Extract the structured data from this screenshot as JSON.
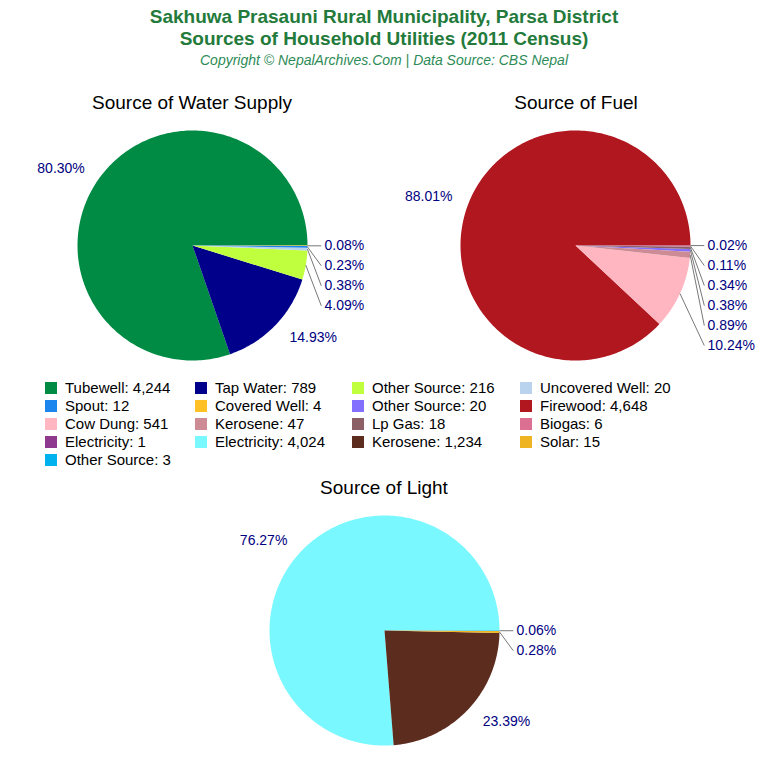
{
  "title": "Sakhuwa Prasauni Rural Municipality, Parsa District\nSources of Household Utilities (2011 Census)",
  "subtitle": "Copyright © NepalArchives.Com | Data Source: CBS Nepal",
  "chart_data": [
    {
      "type": "pie",
      "title": "Source of Water Supply",
      "categories": [
        "Tubewell",
        "Tap Water",
        "Other Source",
        "Uncovered Well",
        "Spout",
        "Covered Well"
      ],
      "values": [
        80.3,
        14.93,
        4.09,
        0.38,
        0.23,
        0.08
      ],
      "value_labels": [
        "80.30%",
        "14.93%",
        "4.09%",
        "0.38%",
        "0.23%",
        "0.08%"
      ],
      "legend_labels": [
        "Tubewell: 4,244",
        "Tap Water: 789",
        "Other Source: 216",
        "Uncovered Well: 20",
        "Spout: 12",
        "Covered Well: 4"
      ],
      "colors": [
        "#008b45",
        "#00008b",
        "#c0ff3e",
        "#b9d3ee",
        "#1c86ee",
        "#ffc125"
      ],
      "data_labels": true,
      "tick_labels": false
    },
    {
      "type": "pie",
      "title": "Source of Fuel",
      "categories": [
        "Other Source",
        "Firewood",
        "Cow Dung",
        "Kerosene",
        "Lp Gas",
        "Biogas",
        "Electricity"
      ],
      "values": [
        0.38,
        88.01,
        10.24,
        0.89,
        0.34,
        0.11,
        0.02
      ],
      "value_labels": [
        "0.38%",
        "88.01%",
        "10.24%",
        "0.89%",
        "0.34%",
        "0.11%",
        "0.02%"
      ],
      "legend_labels": [
        "Other Source: 20",
        "Firewood: 4,648",
        "Cow Dung: 541",
        "Kerosene: 47",
        "Lp Gas: 18",
        "Biogas: 6",
        "Electricity: 1"
      ],
      "colors": [
        "#8470ff",
        "#b0171f",
        "#ffb6c1",
        "#cd8c95",
        "#8b5f65",
        "#db7093",
        "#8e388e"
      ],
      "data_labels": true,
      "tick_labels": false
    },
    {
      "type": "pie",
      "title": "Source of Light",
      "categories": [
        "Electricity",
        "Kerosene",
        "Solar",
        "Other Source"
      ],
      "values": [
        76.27,
        23.39,
        0.28,
        0.06
      ],
      "value_labels": [
        "76.27%",
        "23.39%",
        "0.28%",
        "0.06%"
      ],
      "legend_labels": [
        "Electricity: 4,024",
        "Kerosene: 1,234",
        "Solar: 15",
        "Other Source: 3"
      ],
      "colors": [
        "#7af8ff",
        "#5c2c1e",
        "#eeb422",
        "#00b2ee"
      ],
      "data_labels": true,
      "tick_labels": false
    }
  ]
}
